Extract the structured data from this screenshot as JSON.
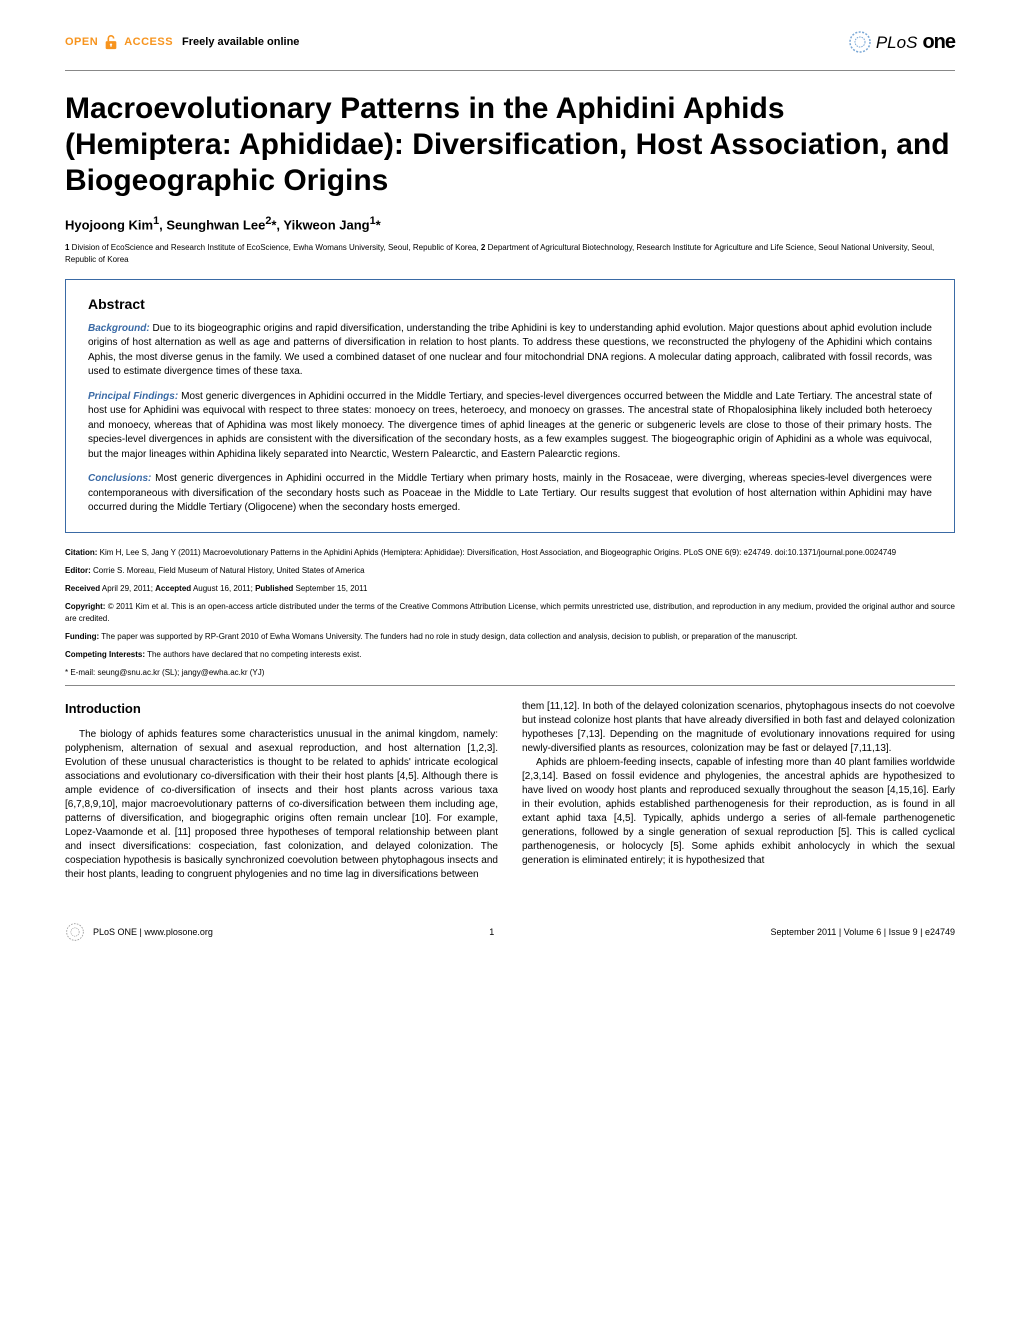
{
  "header": {
    "open_text": "OPEN",
    "access_text": "ACCESS",
    "freely_text": "Freely available online",
    "plos_prefix": "PLoS",
    "plos_suffix": "one",
    "lock_color": "#f7941e"
  },
  "title": "Macroevolutionary Patterns in the Aphidini Aphids (Hemiptera: Aphididae): Diversification, Host Association, and Biogeographic Origins",
  "authors_html": "Hyojoong Kim<sup>1</sup>, Seunghwan Lee<sup>2</sup>*, Yikweon Jang<sup>1</sup>*",
  "affiliations": [
    {
      "num": "1",
      "text": "Division of EcoScience and Research Institute of EcoScience, Ewha Womans University, Seoul, Republic of Korea, "
    },
    {
      "num": "2",
      "text": "Department of Agricultural Biotechnology, Research Institute for Agriculture and Life Science, Seoul National University, Seoul, Republic of Korea"
    }
  ],
  "abstract": {
    "heading": "Abstract",
    "sections": [
      {
        "label": "Background:",
        "text": " Due to its biogeographic origins and rapid diversification, understanding the tribe Aphidini is key to understanding aphid evolution. Major questions about aphid evolution include origins of host alternation as well as age and patterns of diversification in relation to host plants. To address these questions, we reconstructed the phylogeny of the Aphidini which contains Aphis, the most diverse genus in the family. We used a combined dataset of one nuclear and four mitochondrial DNA regions. A molecular dating approach, calibrated with fossil records, was used to estimate divergence times of these taxa."
      },
      {
        "label": "Principal Findings:",
        "text": " Most generic divergences in Aphidini occurred in the Middle Tertiary, and species-level divergences occurred between the Middle and Late Tertiary. The ancestral state of host use for Aphidini was equivocal with respect to three states: monoecy on trees, heteroecy, and monoecy on grasses. The ancestral state of Rhopalosiphina likely included both heteroecy and monoecy, whereas that of Aphidina was most likely monoecy. The divergence times of aphid lineages at the generic or subgeneric levels are close to those of their primary hosts. The species-level divergences in aphids are consistent with the diversification of the secondary hosts, as a few examples suggest. The biogeographic origin of Aphidini as a whole was equivocal, but the major lineages within Aphidina likely separated into Nearctic, Western Palearctic, and Eastern Palearctic regions."
      },
      {
        "label": "Conclusions:",
        "text": " Most generic divergences in Aphidini occurred in the Middle Tertiary when primary hosts, mainly in the Rosaceae, were diverging, whereas species-level divergences were contemporaneous with diversification of the secondary hosts such as Poaceae in the Middle to Late Tertiary. Our results suggest that evolution of host alternation within Aphidini may have occurred during the Middle Tertiary (Oligocene) when the secondary hosts emerged."
      }
    ]
  },
  "metadata": {
    "citation_label": "Citation:",
    "citation_text": " Kim H, Lee S, Jang Y (2011) Macroevolutionary Patterns in the Aphidini Aphids (Hemiptera: Aphididae): Diversification, Host Association, and Biogeographic Origins. PLoS ONE 6(9): e24749. doi:10.1371/journal.pone.0024749",
    "editor_label": "Editor:",
    "editor_text": " Corrie S. Moreau, Field Museum of Natural History, United States of America",
    "received_label": "Received",
    "received_text": " April 29, 2011; ",
    "accepted_label": "Accepted",
    "accepted_text": " August 16, 2011; ",
    "published_label": "Published",
    "published_text": " September 15, 2011",
    "copyright_label": "Copyright:",
    "copyright_text": " © 2011 Kim et al. This is an open-access article distributed under the terms of the Creative Commons Attribution License, which permits unrestricted use, distribution, and reproduction in any medium, provided the original author and source are credited.",
    "funding_label": "Funding:",
    "funding_text": " The paper was supported by RP-Grant 2010 of Ewha Womans University. The funders had no role in study design, data collection and analysis, decision to publish, or preparation of the manuscript.",
    "competing_label": "Competing Interests:",
    "competing_text": " The authors have declared that no competing interests exist.",
    "email_text": "* E-mail: seung@snu.ac.kr (SL); jangy@ewha.ac.kr (YJ)"
  },
  "introduction": {
    "heading": "Introduction",
    "col1": "The biology of aphids features some characteristics unusual in the animal kingdom, namely: polyphenism, alternation of sexual and asexual reproduction, and host alternation [1,2,3]. Evolution of these unusual characteristics is thought to be related to aphids' intricate ecological associations and evolutionary co-diversification with their their host plants [4,5]. Although there is ample evidence of co-diversification of insects and their host plants across various taxa [6,7,8,9,10], major macroevolutionary patterns of co-diversification between them including age, patterns of diversification, and biogegraphic origins often remain unclear [10]. For example, Lopez-Vaamonde et al. [11] proposed three hypotheses of temporal relationship between plant and insect diversifications: cospeciation, fast colonization, and delayed colonization. The cospeciation hypothesis is basically synchronized coevolution between phytophagous insects and their host plants, leading to congruent phylogenies and no time lag in diversifications between",
    "col2_p1": "them [11,12]. In both of the delayed colonization scenarios, phytophagous insects do not coevolve but instead colonize host plants that have already diversified in both fast and delayed colonization hypotheses [7,13]. Depending on the magnitude of evolutionary innovations required for using newly-diversified plants as resources, colonization may be fast or delayed [7,11,13].",
    "col2_p2": "Aphids are phloem-feeding insects, capable of infesting more than 40 plant families worldwide [2,3,14]. Based on fossil evidence and phylogenies, the ancestral aphids are hypothesized to have lived on woody host plants and reproduced sexually throughout the season [4,15,16]. Early in their evolution, aphids established parthenogenesis for their reproduction, as is found in all extant aphid taxa [4,5]. Typically, aphids undergo a series of all-female parthenogenetic generations, followed by a single generation of sexual reproduction [5]. This is called cyclical parthenogenesis, or holocycly [5]. Some aphids exhibit anholocycly in which the sexual generation is eliminated entirely; it is hypothesized that"
  },
  "footer": {
    "journal": "PLoS ONE | www.plosone.org",
    "page_number": "1",
    "issue_info": "September 2011 | Volume 6 | Issue 9 | e24749"
  },
  "colors": {
    "accent_blue": "#3a6aa5",
    "orange": "#f7941e",
    "text": "#000000",
    "background": "#ffffff",
    "divider": "#888888"
  },
  "typography": {
    "title_fontsize": 30,
    "body_fontsize": 10,
    "meta_fontsize": 8,
    "heading_fontsize": 13
  }
}
